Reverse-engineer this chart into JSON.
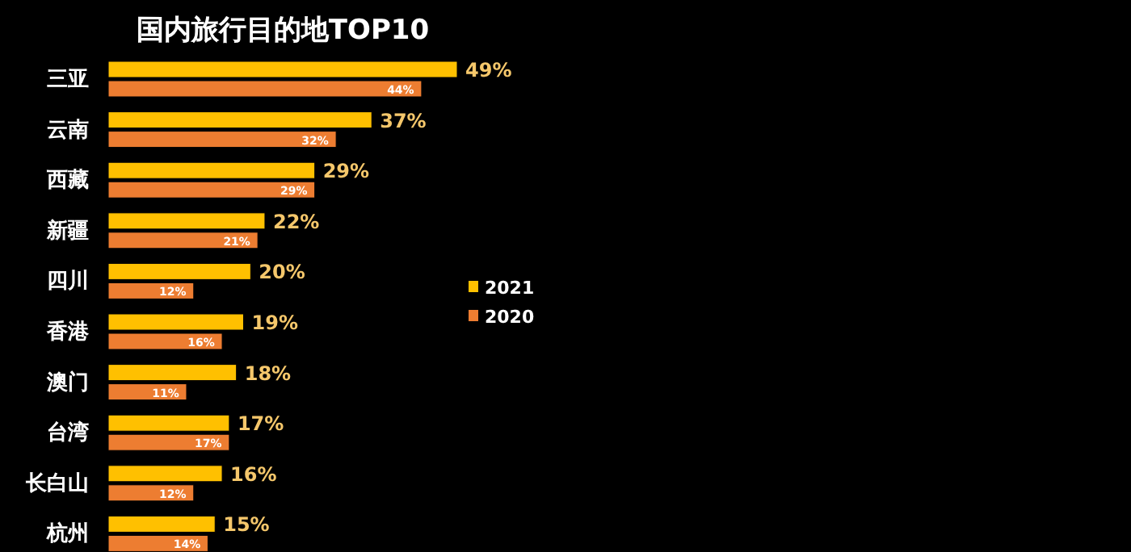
{
  "chart_data": {
    "type": "bar",
    "orientation": "horizontal",
    "title": "国内旅行目的地TOP10",
    "categories": [
      "三亚",
      "云南",
      "西藏",
      "新疆",
      "四川",
      "香港",
      "澳门",
      "台湾",
      "长白山",
      "杭州"
    ],
    "series": [
      {
        "name": "2021",
        "color": "#ffc000",
        "values": [
          49,
          37,
          29,
          22,
          20,
          19,
          18,
          17,
          16,
          15
        ],
        "value_labels": [
          "49%",
          "37%",
          "29%",
          "22%",
          "20%",
          "19%",
          "18%",
          "17%",
          "16%",
          "15%"
        ]
      },
      {
        "name": "2020",
        "color": "#ed7d31",
        "values": [
          44,
          32,
          29,
          21,
          12,
          16,
          11,
          17,
          12,
          14
        ],
        "value_labels": [
          "44%",
          "32%",
          "29%",
          "21%",
          "12%",
          "16%",
          "11%",
          "17%",
          "12%",
          "14%"
        ]
      }
    ],
    "legend": "right",
    "grid": false
  }
}
